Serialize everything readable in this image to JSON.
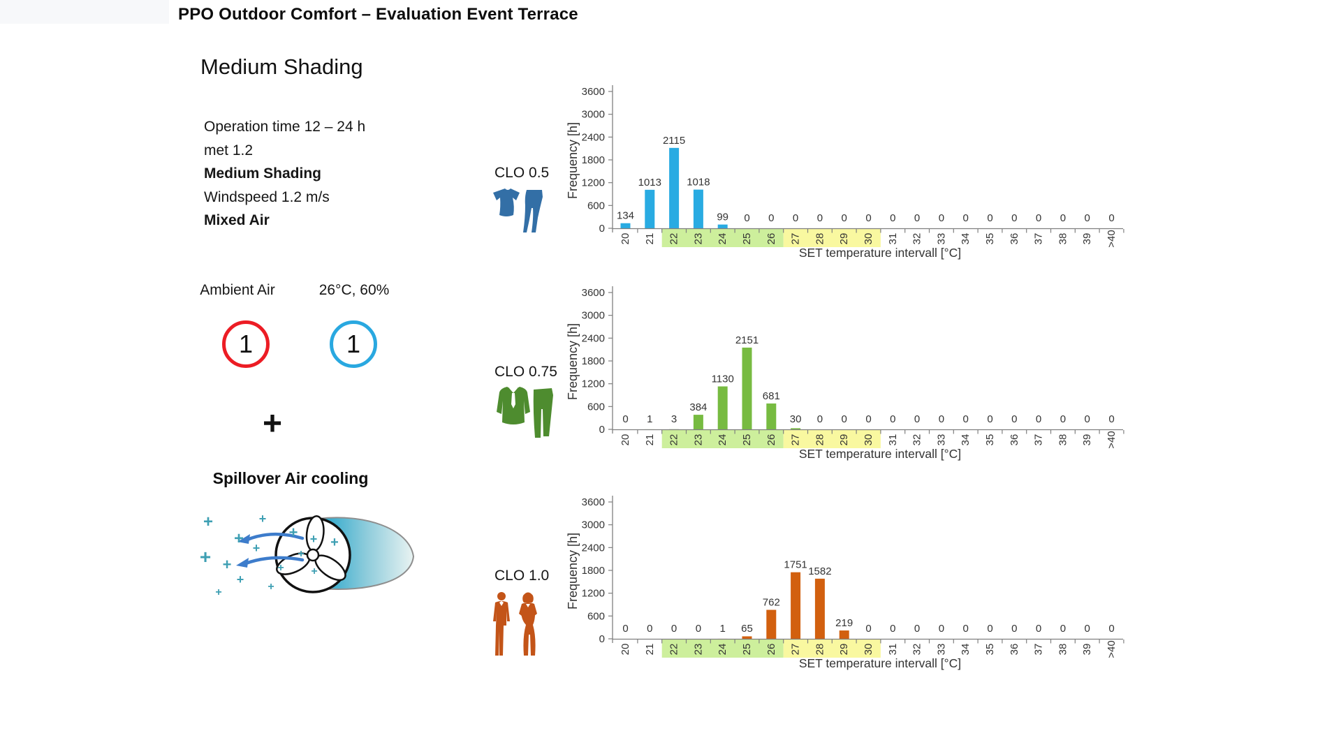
{
  "slide": {
    "title": "PPO Outdoor Comfort – Evaluation Event Terrace",
    "subtitle": "Medium Shading"
  },
  "info": {
    "lines": [
      {
        "text": "Operation time 12 – 24 h",
        "bold": false
      },
      {
        "text": "met 1.2",
        "bold": false
      },
      {
        "text": "Medium Shading",
        "bold": true
      },
      {
        "text": "Windspeed 1.2 m/s",
        "bold": false
      },
      {
        "text": "Mixed Air",
        "bold": true
      }
    ]
  },
  "mixing": {
    "ambient_label": "Ambient Air",
    "spill_label": "26°C, 60%",
    "ambient_value": "1",
    "spill_value": "1",
    "plus": "+",
    "spillover_title": "Spillover Air cooling",
    "colors": {
      "ambient_ring": "#ec1c24",
      "spill_ring": "#29a8e0"
    }
  },
  "icons": {
    "clo_05": "tshirt-and-trousers-icon",
    "clo_075": "sweater-tie-and-trousers-icon",
    "clo_10": "business-man-and-woman-icon",
    "spillover": "fan-with-air-jet-icon"
  },
  "chart_data": [
    {
      "type": "bar",
      "group_label": "CLO 0.5",
      "icon": "tshirt-and-trousers-icon",
      "bar_color": "#29abe2",
      "categories": [
        "20",
        "21",
        "22",
        "23",
        "24",
        "25",
        "26",
        "27",
        "28",
        "29",
        "30",
        "31",
        "32",
        "33",
        "34",
        "35",
        "36",
        "37",
        "38",
        "39",
        ">40"
      ],
      "values": [
        134,
        1013,
        2115,
        1018,
        99,
        0,
        0,
        0,
        0,
        0,
        0,
        0,
        0,
        0,
        0,
        0,
        0,
        0,
        0,
        0,
        0
      ],
      "ylabel": "Frequency  [h]",
      "xlabel": "SET temperature intervall [°C]",
      "yticks": [
        0,
        600,
        1200,
        1800,
        2400,
        3000,
        3600
      ],
      "ylim": [
        0,
        3600
      ],
      "grid": false,
      "comfort_bands": [
        {
          "from": "22",
          "to": "26",
          "color": "#cdef9c"
        },
        {
          "from": "27",
          "to": "30",
          "color": "#f9f8a0"
        }
      ]
    },
    {
      "type": "bar",
      "group_label": "CLO 0.75",
      "icon": "sweater-tie-and-trousers-icon",
      "bar_color": "#77bb41",
      "categories": [
        "20",
        "21",
        "22",
        "23",
        "24",
        "25",
        "26",
        "27",
        "28",
        "29",
        "30",
        "31",
        "32",
        "33",
        "34",
        "35",
        "36",
        "37",
        "38",
        "39",
        ">40"
      ],
      "values": [
        0,
        1,
        3,
        384,
        1130,
        2151,
        681,
        30,
        0,
        0,
        0,
        0,
        0,
        0,
        0,
        0,
        0,
        0,
        0,
        0,
        0
      ],
      "ylabel": "Frequency  [h]",
      "xlabel": "SET temperature intervall [°C]",
      "yticks": [
        0,
        600,
        1200,
        1800,
        2400,
        3000,
        3600
      ],
      "ylim": [
        0,
        3600
      ],
      "grid": false,
      "comfort_bands": [
        {
          "from": "22",
          "to": "26",
          "color": "#cdef9c"
        },
        {
          "from": "27",
          "to": "30",
          "color": "#f9f8a0"
        }
      ]
    },
    {
      "type": "bar",
      "group_label": "CLO 1.0",
      "icon": "business-man-and-woman-icon",
      "bar_color": "#d2600f",
      "categories": [
        "20",
        "21",
        "22",
        "23",
        "24",
        "25",
        "26",
        "27",
        "28",
        "29",
        "30",
        "31",
        "32",
        "33",
        "34",
        "35",
        "36",
        "37",
        "38",
        "39",
        ">40"
      ],
      "values": [
        0,
        0,
        0,
        0,
        1,
        65,
        762,
        1751,
        1582,
        219,
        0,
        0,
        0,
        0,
        0,
        0,
        0,
        0,
        0,
        0,
        0
      ],
      "ylabel": "Frequency  [h]",
      "xlabel": "SET temperature intervall [°C]",
      "yticks": [
        0,
        600,
        1200,
        1800,
        2400,
        3000,
        3600
      ],
      "ylim": [
        0,
        3600
      ],
      "grid": false,
      "comfort_bands": [
        {
          "from": "22",
          "to": "26",
          "color": "#cdef9c"
        },
        {
          "from": "27",
          "to": "30",
          "color": "#f9f8a0"
        }
      ]
    }
  ]
}
